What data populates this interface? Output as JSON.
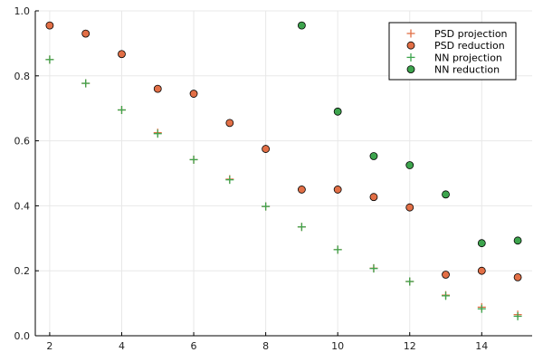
{
  "chart_data": {
    "type": "scatter",
    "title": "",
    "xlabel": "",
    "ylabel": "",
    "xlim": [
      1.6,
      15.4
    ],
    "ylim": [
      0,
      1.0
    ],
    "xticks": [
      2,
      4,
      6,
      8,
      10,
      12,
      14
    ],
    "yticks": [
      0.0,
      0.2,
      0.4,
      0.6,
      0.8,
      1.0
    ],
    "xtick_labels": [
      "2",
      "4",
      "6",
      "8",
      "10",
      "12",
      "14"
    ],
    "ytick_labels": [
      "0.0",
      "0.2",
      "0.4",
      "0.6",
      "0.8",
      "1.0"
    ],
    "grid": true,
    "legend_position": "top-right",
    "series": [
      {
        "name": "PSD projection",
        "marker": "plus",
        "color": "#e26f46",
        "x": [
          2,
          3,
          4,
          5,
          6,
          7,
          8,
          9,
          10,
          11,
          12,
          13,
          14,
          15
        ],
        "y": [
          0.85,
          0.777,
          0.695,
          0.625,
          0.542,
          0.482,
          0.398,
          0.335,
          0.265,
          0.208,
          0.167,
          0.125,
          0.088,
          0.065
        ]
      },
      {
        "name": "PSD reduction",
        "marker": "circle",
        "color": "#e26f46",
        "x": [
          2,
          3,
          4,
          5,
          6,
          7,
          8,
          9,
          10,
          11,
          12,
          13,
          14,
          15
        ],
        "y": [
          0.955,
          0.93,
          0.867,
          0.76,
          0.745,
          0.655,
          0.575,
          0.45,
          0.45,
          0.427,
          0.395,
          0.188,
          0.2,
          0.18
        ]
      },
      {
        "name": "NN projection",
        "marker": "plus",
        "color": "#3da44d",
        "x": [
          2,
          3,
          4,
          5,
          6,
          7,
          8,
          9,
          10,
          11,
          12,
          13,
          14,
          15
        ],
        "y": [
          0.85,
          0.777,
          0.695,
          0.622,
          0.542,
          0.48,
          0.398,
          0.335,
          0.265,
          0.207,
          0.167,
          0.123,
          0.083,
          0.06
        ]
      },
      {
        "name": "NN reduction",
        "marker": "circle",
        "color": "#3da44d",
        "x": [
          9,
          10,
          11,
          12,
          13,
          14,
          15
        ],
        "y": [
          0.955,
          0.69,
          0.553,
          0.525,
          0.435,
          0.285,
          0.293
        ]
      }
    ]
  }
}
